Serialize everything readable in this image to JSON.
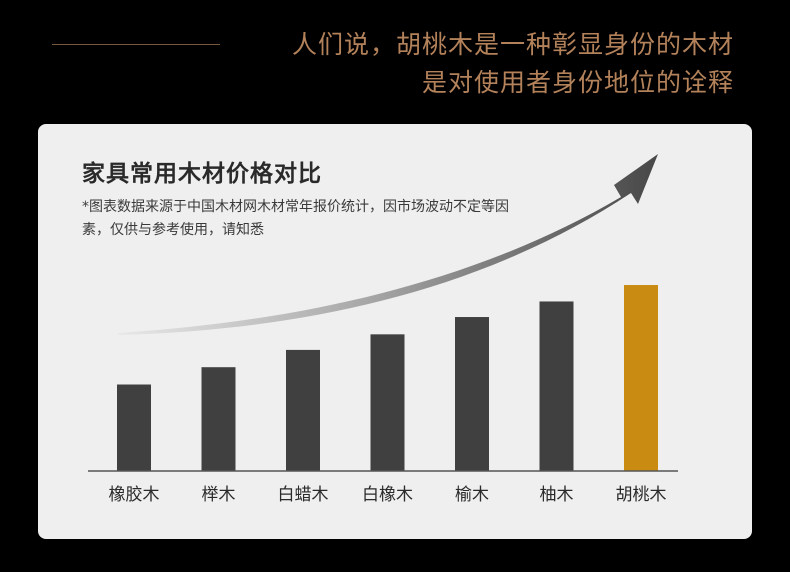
{
  "header": {
    "line1": "人们说，胡桃木是一种彰显身份的木材",
    "line2": "是对使用者身份地位的诠释"
  },
  "chart_data": {
    "type": "bar",
    "title": "家具常用木材价格对比",
    "note": "*图表数据来源于中国木材网木材常年报价统计，因市场波动不定等因素，仅供与参考使用，请知悉",
    "categories": [
      "橡胶木",
      "榉木",
      "白蜡木",
      "白橡木",
      "榆木",
      "柚木",
      "胡桃木"
    ],
    "values": [
      1,
      1.2,
      1.4,
      1.58,
      1.78,
      1.96,
      2.15
    ],
    "highlight": "胡桃木",
    "colors": {
      "bar": "#404040",
      "highlight": "#c98b12",
      "axis": "#555555"
    },
    "trend_arrow": true,
    "grid": false
  }
}
